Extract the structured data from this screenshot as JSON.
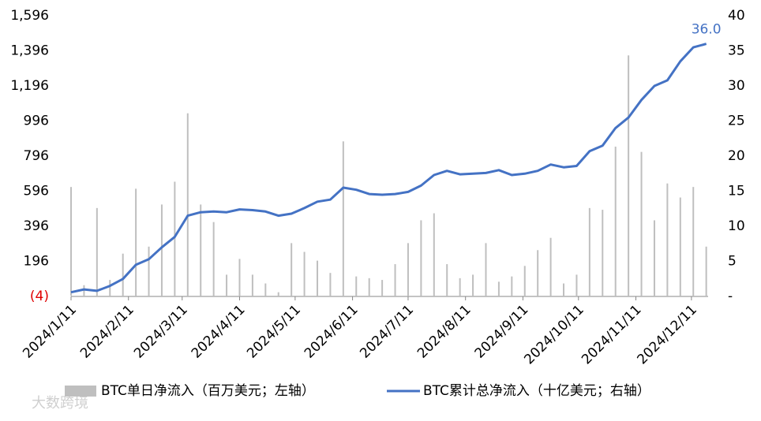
{
  "chart_data": {
    "type": "combo",
    "x": [
      "2024/1/11",
      "2024/1/18",
      "2024/1/25",
      "2024/2/1",
      "2024/2/8",
      "2024/2/15",
      "2024/2/22",
      "2024/2/29",
      "2024/3/7",
      "2024/3/14",
      "2024/3/21",
      "2024/3/28",
      "2024/4/4",
      "2024/4/11",
      "2024/4/18",
      "2024/4/25",
      "2024/5/2",
      "2024/5/9",
      "2024/5/16",
      "2024/5/23",
      "2024/5/30",
      "2024/6/6",
      "2024/6/13",
      "2024/6/20",
      "2024/6/27",
      "2024/7/4",
      "2024/7/11",
      "2024/7/18",
      "2024/7/25",
      "2024/8/1",
      "2024/8/8",
      "2024/8/15",
      "2024/8/22",
      "2024/8/29",
      "2024/9/5",
      "2024/9/12",
      "2024/9/19",
      "2024/9/26",
      "2024/10/3",
      "2024/10/10",
      "2024/10/17",
      "2024/10/24",
      "2024/10/31",
      "2024/11/7",
      "2024/11/14",
      "2024/11/21",
      "2024/11/28",
      "2024/12/5",
      "2024/12/12",
      "2024/12/19"
    ],
    "series": [
      {
        "name": "BTC单日净流入（百万美元；左轴）",
        "type": "bar",
        "axis": "y",
        "color": "#bfbfbf",
        "values": [
          620,
          60,
          500,
          90,
          240,
          610,
          280,
          520,
          650,
          1040,
          520,
          420,
          120,
          210,
          120,
          70,
          20,
          300,
          250,
          200,
          130,
          880,
          110,
          100,
          90,
          180,
          300,
          430,
          470,
          180,
          100,
          120,
          300,
          80,
          110,
          170,
          260,
          330,
          70,
          120,
          500,
          490,
          850,
          1370,
          820,
          430,
          640,
          560,
          620,
          280
        ]
      },
      {
        "name": "BTC累计总净流入（十亿美元；右轴）",
        "type": "line",
        "axis": "y2",
        "color": "#4472c4",
        "values": [
          0.6,
          1.0,
          0.8,
          1.5,
          2.5,
          4.5,
          5.3,
          7.0,
          8.5,
          11.5,
          12.0,
          12.1,
          12.0,
          12.4,
          12.3,
          12.1,
          11.5,
          11.8,
          12.6,
          13.5,
          13.8,
          15.5,
          15.2,
          14.6,
          14.5,
          14.6,
          14.9,
          15.8,
          17.3,
          17.9,
          17.4,
          17.5,
          17.6,
          18.0,
          17.3,
          17.5,
          17.9,
          18.8,
          18.4,
          18.6,
          20.7,
          21.5,
          24.0,
          25.5,
          28.0,
          30.0,
          30.8,
          33.5,
          35.5,
          36.0
        ],
        "value_labels": [
          null,
          null,
          null,
          null,
          null,
          null,
          null,
          null,
          null,
          null,
          null,
          null,
          null,
          null,
          null,
          null,
          null,
          null,
          null,
          null,
          null,
          null,
          null,
          null,
          null,
          null,
          null,
          null,
          null,
          null,
          null,
          null,
          null,
          null,
          null,
          null,
          null,
          null,
          null,
          null,
          null,
          null,
          null,
          null,
          null,
          null,
          null,
          null,
          null,
          "36.0"
        ]
      }
    ],
    "xlim": [
      "2024/1/11",
      "2024/12/20"
    ],
    "xticks": [
      "2024/1/11",
      "2024/2/11",
      "2024/3/11",
      "2024/4/11",
      "2024/5/11",
      "2024/6/11",
      "2024/7/11",
      "2024/8/11",
      "2024/9/11",
      "2024/10/11",
      "2024/11/11",
      "2024/12/11"
    ],
    "ylim": [
      -4,
      1596
    ],
    "yticks": [
      {
        "value": -4,
        "label": "(4)"
      },
      {
        "value": 196,
        "label": "196"
      },
      {
        "value": 396,
        "label": "396"
      },
      {
        "value": 596,
        "label": "596"
      },
      {
        "value": 796,
        "label": "796"
      },
      {
        "value": 996,
        "label": "996"
      },
      {
        "value": 1196,
        "label": "1,196"
      },
      {
        "value": 1396,
        "label": "1,396"
      },
      {
        "value": 1596,
        "label": "1,596"
      }
    ],
    "negative_tick_color": "#e00000",
    "y2lim": [
      0,
      40
    ],
    "y2ticks": [
      {
        "value": 0,
        "label": "-"
      },
      5,
      10,
      15,
      20,
      25,
      30,
      35,
      40
    ],
    "grid": false
  },
  "watermark": "大数跨境"
}
